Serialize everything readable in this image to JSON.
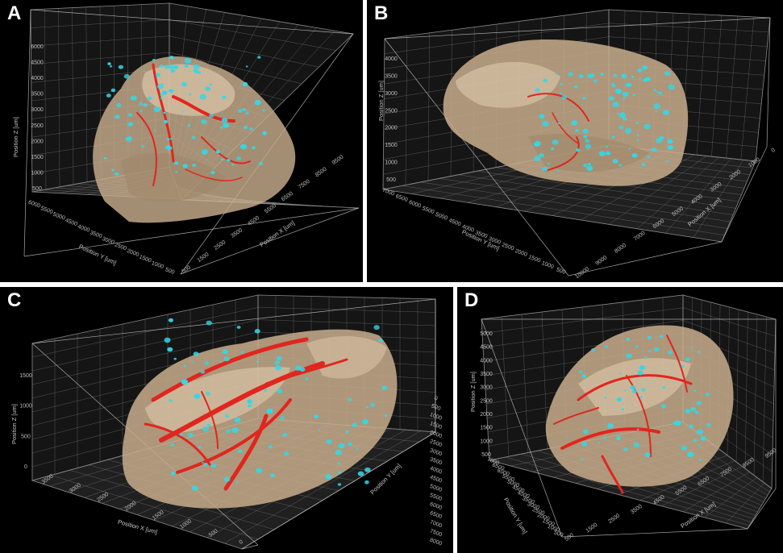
{
  "panels": [
    {
      "letter": "A",
      "z_ticks": [
        "6000",
        "4500",
        "4000",
        "3500",
        "3000",
        "2500",
        "2000",
        "1500",
        "1000",
        "500"
      ],
      "y_ticks": [
        "6000",
        "5500",
        "5000",
        "4500",
        "4000",
        "3500",
        "3000",
        "2500",
        "2000",
        "1500",
        "1000",
        "500"
      ],
      "x_ticks": [
        "9500",
        "8500",
        "7500",
        "6500",
        "5500",
        "4500",
        "3500",
        "2500",
        "1500",
        "500"
      ],
      "z_label": "Position Z [um]",
      "y_label": "Position Y [um]",
      "x_label": "Position X [um]"
    },
    {
      "letter": "B",
      "z_ticks": [
        "4000",
        "3500",
        "3000",
        "2500",
        "2000",
        "1500",
        "1000",
        "500"
      ],
      "y_ticks": [
        "7000",
        "6500",
        "6000",
        "5500",
        "5000",
        "4500",
        "4000",
        "3500",
        "3000",
        "2500",
        "2000",
        "1500",
        "1000",
        "500"
      ],
      "x_ticks": [
        "0",
        "1000",
        "2000",
        "3000",
        "4000",
        "5000",
        "6000",
        "7000",
        "8000",
        "9000",
        "10000"
      ],
      "z_label": "Position Z [um]",
      "y_label": "Position Y [um]",
      "x_label": "Position X [um]"
    },
    {
      "letter": "C",
      "z_ticks": [
        "1500",
        "1000",
        "500",
        "0"
      ],
      "y_ticks": [
        "0",
        "500",
        "1000",
        "1500",
        "2000",
        "2500",
        "3000",
        "3500",
        "4000",
        "4500",
        "5000",
        "5500",
        "6000",
        "6500",
        "7000",
        "7500",
        "8000"
      ],
      "x_ticks": [
        "3500",
        "3000",
        "2500",
        "2000",
        "1500",
        "1000",
        "500",
        "0"
      ],
      "z_label": "Position Z [um]",
      "y_label": "Position Y [um]",
      "x_label": "Position X [um]"
    },
    {
      "letter": "D",
      "z_ticks": [
        "5000",
        "4500",
        "4000",
        "3500",
        "3000",
        "2500",
        "2000",
        "1500",
        "1000",
        "500"
      ],
      "y_ticks": [
        "7000",
        "6500",
        "6000",
        "5500",
        "5000",
        "4500",
        "4000",
        "3500",
        "3000",
        "2500",
        "2000",
        "1500",
        "1000",
        "500"
      ],
      "x_ticks": [
        "9500",
        "8500",
        "7500",
        "6500",
        "5500",
        "4500",
        "3500",
        "2500",
        "1500",
        "500"
      ],
      "z_label": "Position Z [um]",
      "y_label": "Position Y [um]",
      "x_label": "Position X [um]"
    }
  ],
  "colors": {
    "background": "#000000",
    "tissue": "#c8ad8c",
    "vessels": "#e0261e",
    "cells": "#35d7e6",
    "grid": "#8a8a8a"
  }
}
